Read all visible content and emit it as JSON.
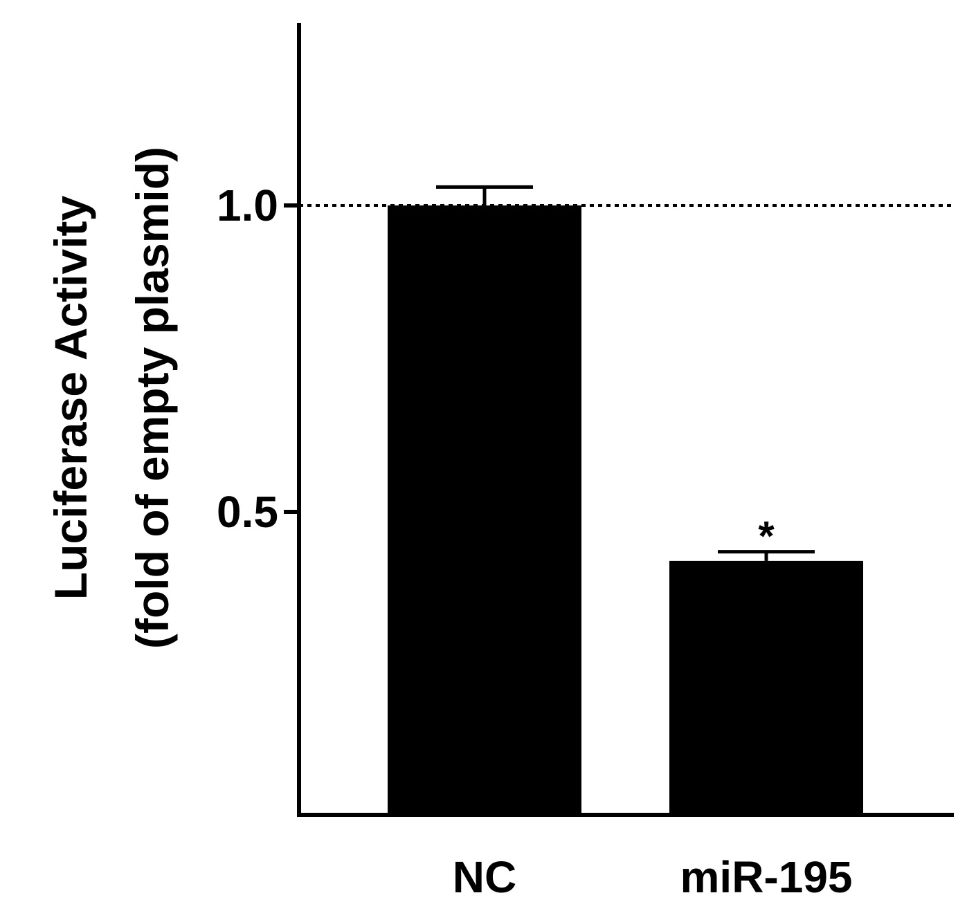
{
  "chart_data": {
    "type": "bar",
    "categories": [
      "NC",
      "miR-195"
    ],
    "values": [
      1.0,
      0.42
    ],
    "errors": [
      0.03,
      0.015
    ],
    "significance": [
      "",
      "*"
    ],
    "title": "",
    "xlabel": "",
    "ylabel_lines": [
      "Luciferase Activity",
      "(fold of empty plasmid)"
    ],
    "ylim": [
      0,
      1.3
    ],
    "yticks": [
      0.5,
      1.0
    ],
    "ytick_labels": [
      "0.5",
      "1.0"
    ],
    "reference_line": 1.0,
    "bar_color": "#000000",
    "grid": false,
    "legend": "none"
  }
}
